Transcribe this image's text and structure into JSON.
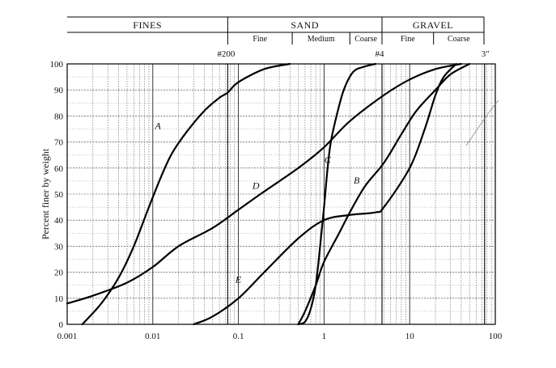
{
  "chart_data": {
    "type": "line",
    "ylabel": "Percent finer by weight",
    "x_scale": "log",
    "xlim": [
      0.001,
      100
    ],
    "ylim": [
      0,
      100
    ],
    "grid": true,
    "x_ticks": [
      {
        "value": 0.001,
        "label": "0.001"
      },
      {
        "value": 0.01,
        "label": "0.01"
      },
      {
        "value": 0.1,
        "label": "0.1"
      },
      {
        "value": 1,
        "label": "1"
      },
      {
        "value": 10,
        "label": "10"
      },
      {
        "value": 100,
        "label": "100"
      }
    ],
    "y_ticks": [
      {
        "value": 0,
        "label": "0"
      },
      {
        "value": 10,
        "label": "10"
      },
      {
        "value": 20,
        "label": "20"
      },
      {
        "value": 30,
        "label": "30"
      },
      {
        "value": 40,
        "label": "40"
      },
      {
        "value": 50,
        "label": "50"
      },
      {
        "value": 60,
        "label": "60"
      },
      {
        "value": 70,
        "label": "70"
      },
      {
        "value": 80,
        "label": "80"
      },
      {
        "value": 90,
        "label": "90"
      },
      {
        "value": 100,
        "label": "100"
      }
    ],
    "classification": {
      "groups": [
        {
          "label": "FINES",
          "from": 0.001,
          "to": 0.075
        },
        {
          "label": "SAND",
          "from": 0.075,
          "to": 4.75
        },
        {
          "label": "GRAVEL",
          "from": 4.75,
          "to": 75
        }
      ],
      "subgroups": [
        {
          "label": "Fine",
          "from": 0.075,
          "to": 0.425
        },
        {
          "label": "Medium",
          "from": 0.425,
          "to": 2.0
        },
        {
          "label": "Coarse",
          "from": 2.0,
          "to": 4.75
        },
        {
          "label": "Fine",
          "from": 4.75,
          "to": 19
        },
        {
          "label": "Coarse",
          "from": 19,
          "to": 75
        }
      ]
    },
    "sieve_markers": [
      {
        "label": "#200",
        "value": 0.075
      },
      {
        "label": "#4",
        "value": 4.75
      },
      {
        "label": "3″",
        "value": 75
      }
    ],
    "series": [
      {
        "name": "A",
        "label_at": {
          "x": 0.0115,
          "y": 75
        },
        "points": [
          [
            0.0015,
            0
          ],
          [
            0.0025,
            8
          ],
          [
            0.004,
            18
          ],
          [
            0.006,
            30
          ],
          [
            0.009,
            45
          ],
          [
            0.013,
            58
          ],
          [
            0.017,
            66
          ],
          [
            0.025,
            74
          ],
          [
            0.04,
            82
          ],
          [
            0.06,
            87
          ],
          [
            0.075,
            89
          ],
          [
            0.1,
            93
          ],
          [
            0.2,
            98
          ],
          [
            0.4,
            100
          ]
        ]
      },
      {
        "name": "B",
        "label_at": {
          "x": 2.4,
          "y": 54
        },
        "points": [
          [
            0.5,
            0
          ],
          [
            0.6,
            5
          ],
          [
            0.8,
            15
          ],
          [
            1.0,
            24
          ],
          [
            1.5,
            35
          ],
          [
            2,
            43
          ],
          [
            3,
            53
          ],
          [
            5,
            62
          ],
          [
            8,
            73
          ],
          [
            12,
            82
          ],
          [
            20,
            90
          ],
          [
            30,
            96
          ],
          [
            50,
            100
          ]
        ]
      },
      {
        "name": "C",
        "label_at": {
          "x": 1.1,
          "y": 62
        },
        "points": [
          [
            0.5,
            0
          ],
          [
            0.6,
            1
          ],
          [
            0.7,
            6
          ],
          [
            0.8,
            15
          ],
          [
            0.9,
            30
          ],
          [
            1.0,
            45
          ],
          [
            1.1,
            60
          ],
          [
            1.2,
            70
          ],
          [
            1.4,
            80
          ],
          [
            1.7,
            90
          ],
          [
            2.2,
            97
          ],
          [
            3,
            99
          ],
          [
            4,
            100
          ]
        ]
      },
      {
        "name": "D",
        "label_at": {
          "x": 0.16,
          "y": 52
        },
        "points": [
          [
            0.001,
            8
          ],
          [
            0.002,
            11
          ],
          [
            0.005,
            16
          ],
          [
            0.01,
            22
          ],
          [
            0.02,
            30
          ],
          [
            0.05,
            37
          ],
          [
            0.1,
            44
          ],
          [
            0.2,
            51
          ],
          [
            0.5,
            60
          ],
          [
            1,
            68
          ],
          [
            2,
            78
          ],
          [
            5,
            88
          ],
          [
            10,
            94
          ],
          [
            20,
            98
          ],
          [
            40,
            100
          ]
        ]
      },
      {
        "name": "E",
        "label_at": {
          "x": 0.1,
          "y": 16
        },
        "points": [
          [
            0.03,
            0
          ],
          [
            0.05,
            3
          ],
          [
            0.1,
            10
          ],
          [
            0.2,
            20
          ],
          [
            0.5,
            33
          ],
          [
            1,
            40
          ],
          [
            2,
            42
          ],
          [
            4,
            43
          ],
          [
            5,
            45
          ],
          [
            10,
            60
          ],
          [
            15,
            75
          ],
          [
            20,
            88
          ],
          [
            25,
            95
          ],
          [
            35,
            100
          ]
        ]
      }
    ]
  }
}
